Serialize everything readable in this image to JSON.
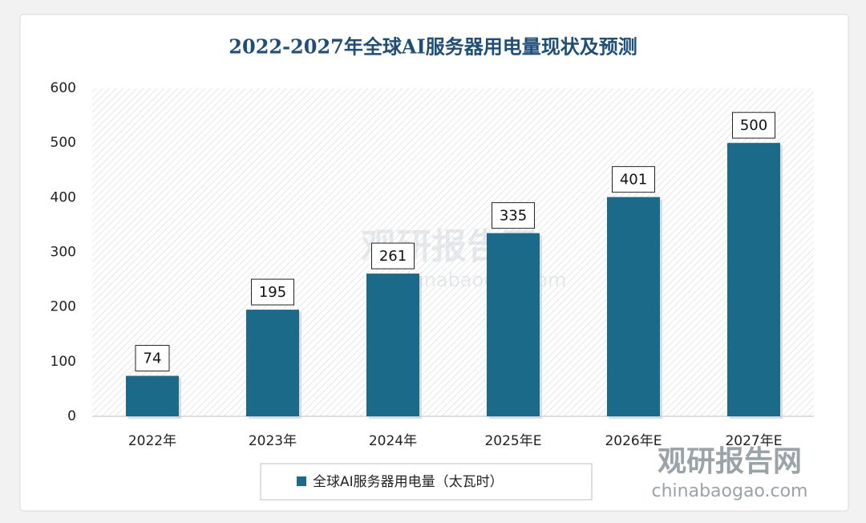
{
  "chart_data": {
    "type": "bar",
    "title": "2022-2027年全球AI服务器用电量现状及预测",
    "categories": [
      "2022年",
      "2023年",
      "2024年",
      "2025年E",
      "2026年E",
      "2027年E"
    ],
    "series": [
      {
        "name": "全球AI服务器用电量（太瓦时）",
        "color": "#1b6a8a",
        "values": [
          74,
          195,
          261,
          335,
          401,
          500
        ]
      }
    ],
    "ylim": [
      0,
      600
    ],
    "yticks": [
      0,
      100,
      200,
      300,
      400,
      500,
      600
    ],
    "grid": false,
    "legend": "bottom",
    "watermark": {
      "name": "观研报告网",
      "url": "chinabaogao.com"
    }
  }
}
